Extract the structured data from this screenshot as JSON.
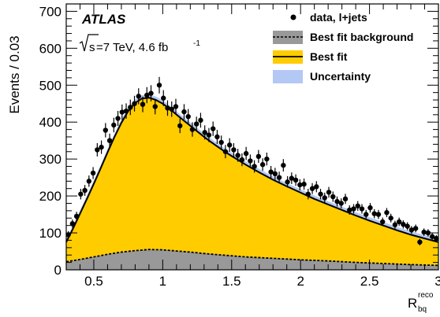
{
  "chart_data": {
    "type": "line",
    "experiment_label": "ATLAS",
    "energy_label_prefix": "s",
    "energy_label_main": "=7 TeV, 4.6 fb",
    "energy_label_sup": "-1",
    "ylabel": "Events / 0.03",
    "xlabel_main": "R",
    "xlabel_sub": "bq",
    "xlabel_sup": "reco",
    "xlim": [
      0.3,
      3.0
    ],
    "ylim": [
      0,
      720
    ],
    "x_ticks": [
      0.5,
      1,
      1.5,
      2,
      2.5,
      3
    ],
    "x_tick_labels": [
      "0.5",
      "1",
      "1.5",
      "2",
      "2.5",
      "3"
    ],
    "y_ticks": [
      0,
      100,
      200,
      300,
      400,
      500,
      600,
      700
    ],
    "y_tick_labels": [
      "0",
      "100",
      "200",
      "300",
      "400",
      "500",
      "600",
      "700"
    ],
    "legend": {
      "placement": "top-right",
      "entries": [
        "data, l+jets",
        "Best fit background",
        "Best fit",
        "Uncertainty"
      ]
    },
    "colors": {
      "best_fit_fill": "#ffcc00",
      "background_fill": "#999999",
      "uncertainty": "#b4c8f5",
      "data": "#000000"
    },
    "series": [
      {
        "name": "data, l+jets",
        "kind": "points",
        "x": [
          0.315,
          0.345,
          0.375,
          0.405,
          0.435,
          0.465,
          0.495,
          0.525,
          0.555,
          0.585,
          0.615,
          0.645,
          0.675,
          0.705,
          0.735,
          0.765,
          0.795,
          0.825,
          0.855,
          0.885,
          0.915,
          0.945,
          0.975,
          1.005,
          1.035,
          1.065,
          1.095,
          1.125,
          1.155,
          1.185,
          1.215,
          1.245,
          1.275,
          1.305,
          1.335,
          1.365,
          1.395,
          1.425,
          1.455,
          1.485,
          1.515,
          1.545,
          1.575,
          1.605,
          1.635,
          1.665,
          1.695,
          1.725,
          1.755,
          1.785,
          1.815,
          1.845,
          1.875,
          1.905,
          1.935,
          1.965,
          1.995,
          2.025,
          2.055,
          2.085,
          2.115,
          2.145,
          2.175,
          2.205,
          2.235,
          2.265,
          2.295,
          2.325,
          2.355,
          2.385,
          2.415,
          2.445,
          2.475,
          2.505,
          2.535,
          2.565,
          2.595,
          2.625,
          2.655,
          2.685,
          2.715,
          2.745,
          2.775,
          2.805,
          2.835,
          2.865,
          2.895,
          2.925,
          2.955,
          2.985
        ],
        "y": [
          95,
          125,
          145,
          205,
          215,
          240,
          262,
          325,
          332,
          378,
          350,
          392,
          410,
          427,
          430,
          440,
          450,
          470,
          448,
          473,
          478,
          442,
          500,
          465,
          438,
          435,
          442,
          390,
          428,
          415,
          380,
          395,
          405,
          372,
          365,
          382,
          360,
          345,
          320,
          338,
          325,
          310,
          298,
          315,
          295,
          280,
          307,
          285,
          300,
          265,
          260,
          250,
          283,
          238,
          248,
          243,
          230,
          232,
          205,
          220,
          225,
          205,
          195,
          210,
          198,
          185,
          180,
          192,
          162,
          165,
          173,
          165,
          150,
          168,
          152,
          150,
          130,
          155,
          140,
          122,
          130,
          123,
          118,
          108,
          112,
          75,
          102,
          100,
          90,
          85
        ]
      },
      {
        "name": "Best fit",
        "kind": "curve",
        "x": [
          0.3,
          0.35,
          0.4,
          0.45,
          0.5,
          0.55,
          0.6,
          0.65,
          0.7,
          0.75,
          0.8,
          0.85,
          0.9,
          0.95,
          1.0,
          1.05,
          1.1,
          1.15,
          1.2,
          1.25,
          1.3,
          1.35,
          1.4,
          1.45,
          1.5,
          1.6,
          1.7,
          1.8,
          1.9,
          2.0,
          2.1,
          2.2,
          2.3,
          2.4,
          2.5,
          2.6,
          2.7,
          2.8,
          2.9,
          3.0
        ],
        "y": [
          75,
          112,
          152,
          192,
          233,
          275,
          318,
          360,
          398,
          430,
          452,
          464,
          466,
          460,
          450,
          436,
          420,
          405,
          390,
          375,
          360,
          346,
          333,
          320,
          308,
          285,
          264,
          244,
          226,
          209,
          192,
          177,
          162,
          147,
          133,
          120,
          107,
          95,
          85,
          75
        ]
      },
      {
        "name": "Best fit background",
        "kind": "curve",
        "x": [
          0.3,
          0.4,
          0.5,
          0.6,
          0.7,
          0.8,
          0.9,
          1.0,
          1.1,
          1.2,
          1.3,
          1.4,
          1.5,
          1.6,
          1.8,
          2.0,
          2.2,
          2.4,
          2.6,
          2.8,
          3.0
        ],
        "y": [
          22,
          28,
          35,
          42,
          48,
          52,
          55,
          54,
          51,
          48,
          44,
          41,
          38,
          35,
          31,
          27,
          24,
          20,
          17,
          14,
          12
        ]
      }
    ]
  }
}
